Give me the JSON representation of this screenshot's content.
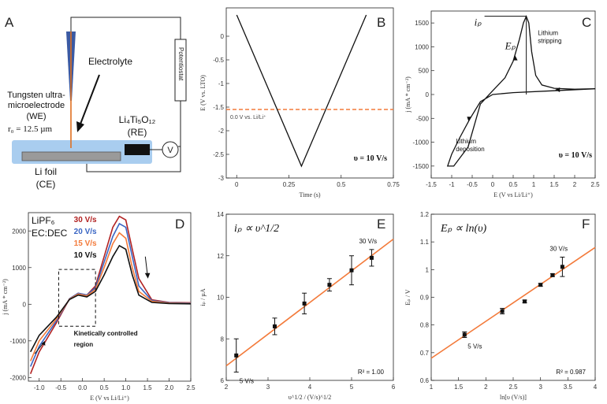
{
  "panels": {
    "A": {
      "label": "A",
      "electrolyte": "Electrolyte",
      "potentiostat": "Potentiostat",
      "we_line1": "Tungsten ultra-",
      "we_line2": "microelectrode",
      "we_line3": "(WE)",
      "we_radius": "r₀ = 12.5 µm",
      "re_line1": "Li₄Ti₅O₁₂",
      "re_line2": "(RE)",
      "volt": "V",
      "ce_line1": "Li foil",
      "ce_line2": "(CE)"
    }
  },
  "colors": {
    "orange": "#f37a3a",
    "red": "#b22222",
    "blue": "#3a66c4",
    "dark": "#111111",
    "electrolyte": "#a9cdef"
  },
  "chart_data": [
    {
      "panel": "B",
      "type": "line",
      "title": "",
      "xlabel": "Time (s)",
      "ylabel": "E (V vs. LTO)",
      "xlim": [
        -0.05,
        0.75
      ],
      "ylim": [
        -3,
        0.6
      ],
      "xticks": [
        0,
        0.25,
        0.5,
        0.75
      ],
      "yticks": [
        -3,
        -2.5,
        -2,
        -1.5,
        -1,
        -0.5,
        0
      ],
      "x": [
        0,
        0.31,
        0.62
      ],
      "y": [
        0.45,
        -2.75,
        0.45
      ],
      "reference_line": {
        "y": -1.55,
        "label": "0.0 V vs. Li/Li⁺"
      },
      "annotation": "υ = 10 V/s"
    },
    {
      "panel": "C",
      "type": "line",
      "title": "",
      "xlabel": "E (V vs Li/Li⁺)",
      "ylabel": "j (mA * cm⁻²)",
      "xlim": [
        -1.5,
        2.5
      ],
      "ylim": [
        -1750,
        1750
      ],
      "xticks": [
        -1.5,
        -1,
        -0.5,
        0,
        0.5,
        1,
        1.5,
        2,
        2.5
      ],
      "yticks": [
        -1500,
        -1000,
        -500,
        0,
        500,
        1000,
        1500
      ],
      "x": [
        2.5,
        1.5,
        0.5,
        0.0,
        -0.3,
        -0.55,
        -0.8,
        -1.0,
        -1.1,
        -0.95,
        -0.6,
        -0.3,
        0.0,
        0.3,
        0.5,
        0.65,
        0.75,
        0.82,
        0.88,
        0.95,
        1.05,
        1.2,
        1.5,
        2.0,
        2.5
      ],
      "y": [
        120,
        80,
        40,
        0,
        -150,
        -500,
        -900,
        -1250,
        -1500,
        -1500,
        -1100,
        -200,
        80,
        350,
        700,
        1150,
        1500,
        1640,
        1500,
        900,
        400,
        200,
        130,
        110,
        120
      ],
      "annotations": [
        "iₚ",
        "Eₚ",
        "Lithium stripping",
        "Lithium deposition",
        "υ = 10 V/s"
      ]
    },
    {
      "panel": "D",
      "type": "line",
      "title": "",
      "xlabel": "E (V vs Li/Li⁺)",
      "ylabel": "j (mA * cm⁻²)",
      "xlim": [
        -1.25,
        2.5
      ],
      "ylim": [
        -2100,
        2500
      ],
      "xticks": [
        -1.0,
        -0.5,
        0.0,
        0.5,
        1.0,
        1.5,
        2.0,
        2.5
      ],
      "yticks": [
        -2000,
        -1000,
        0,
        1000,
        2000
      ],
      "electrolyte": [
        "LiPF₆",
        "EC:DEC"
      ],
      "region_label": [
        "Kinetically controlled",
        "region"
      ],
      "x": [
        -1.2,
        -1.0,
        -0.6,
        -0.3,
        -0.1,
        0.1,
        0.3,
        0.5,
        0.7,
        0.85,
        1.0,
        1.15,
        1.3,
        1.6,
        2.0,
        2.5
      ],
      "series": [
        {
          "name": "30 V/s",
          "values": [
            -1900,
            -1300,
            -500,
            150,
            300,
            250,
            500,
            1300,
            2100,
            2400,
            2300,
            1500,
            700,
            120,
            50,
            40
          ]
        },
        {
          "name": "20 V/s",
          "values": [
            -1700,
            -1150,
            -450,
            150,
            300,
            250,
            450,
            1150,
            1850,
            2200,
            2100,
            1300,
            500,
            100,
            40,
            30
          ]
        },
        {
          "name": "15 V/s",
          "values": [
            -1550,
            -1000,
            -400,
            140,
            280,
            230,
            400,
            1000,
            1650,
            1950,
            1800,
            1000,
            350,
            80,
            30,
            20
          ]
        },
        {
          "name": "10 V/s",
          "values": [
            -1300,
            -850,
            -350,
            130,
            250,
            200,
            350,
            800,
            1300,
            1600,
            1500,
            800,
            250,
            50,
            20,
            10
          ]
        }
      ]
    },
    {
      "panel": "E",
      "type": "scatter",
      "title": "iₚ ∝ υ^1/2",
      "xlabel": "υ^1/2 / (V/s)^1/2",
      "ylabel": "iₚ / µA",
      "xlim": [
        2,
        6
      ],
      "ylim": [
        6,
        14
      ],
      "xticks": [
        2,
        3,
        4,
        5,
        6
      ],
      "yticks": [
        6,
        8,
        10,
        12,
        14
      ],
      "x": [
        2.24,
        3.16,
        3.87,
        4.47,
        5.0,
        5.48
      ],
      "y": [
        7.2,
        8.6,
        9.7,
        10.6,
        11.3,
        11.9
      ],
      "err": [
        0.8,
        0.4,
        0.5,
        0.3,
        0.7,
        0.4
      ],
      "fit": {
        "x": [
          2,
          6
        ],
        "y": [
          6.7,
          12.8
        ]
      },
      "annotations": [
        "5 V/s",
        "30 V/s"
      ],
      "r2": "R² = 1.00"
    },
    {
      "panel": "F",
      "type": "scatter",
      "title": "Eₚ ∝ ln(υ)",
      "xlabel": "ln[υ (V/s)]",
      "ylabel": "Eₚ / V",
      "xlim": [
        1,
        4
      ],
      "ylim": [
        0.6,
        1.2
      ],
      "xticks": [
        1,
        1.5,
        2,
        2.5,
        3,
        3.5,
        4
      ],
      "yticks": [
        0.6,
        0.7,
        0.8,
        0.9,
        1,
        1.1,
        1.2
      ],
      "x": [
        1.61,
        2.3,
        2.71,
        3.0,
        3.22,
        3.4
      ],
      "y": [
        0.765,
        0.85,
        0.885,
        0.945,
        0.98,
        1.01
      ],
      "err": [
        0.01,
        0.01,
        0.005,
        0.005,
        0.005,
        0.035
      ],
      "fit": {
        "x": [
          1,
          4
        ],
        "y": [
          0.68,
          1.08
        ]
      },
      "annotations": [
        "5 V/s",
        "30 V/s"
      ],
      "r2": "R² = 0.987"
    }
  ]
}
